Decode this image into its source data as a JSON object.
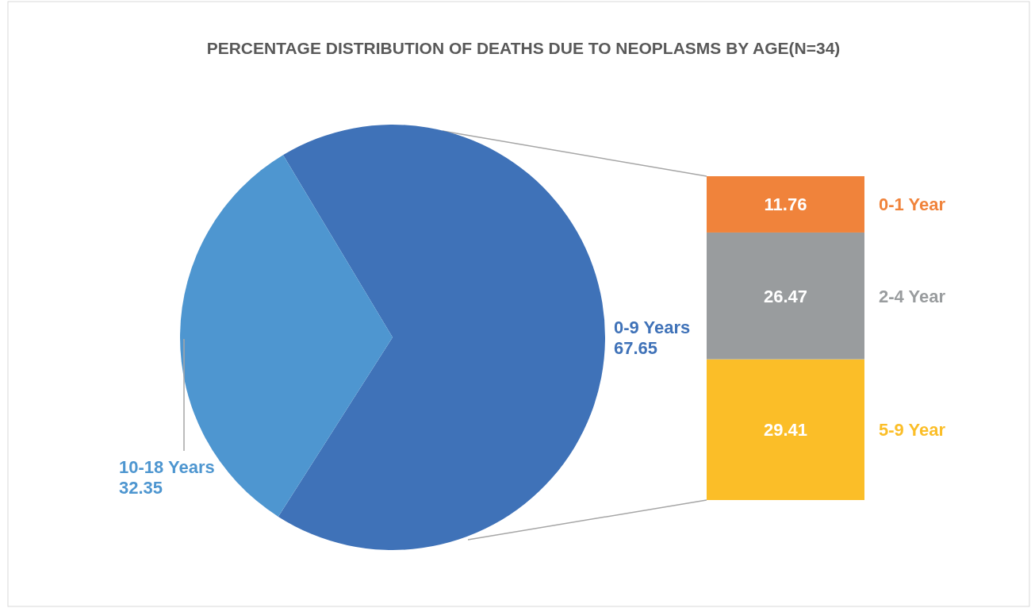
{
  "chart_data": [
    {
      "type": "pie",
      "title": "PERCENTAGE DISTRIBUTION OF DEATHS DUE TO NEOPLASMS BY AGE(N=34)",
      "categories": [
        "0-9 Years",
        "10-18 Years"
      ],
      "values": [
        67.65,
        32.35
      ],
      "colors": [
        "#3f72b8",
        "#4e96d0"
      ],
      "data_labels": true,
      "legend": false
    },
    {
      "type": "bar",
      "stacked": true,
      "categories": [
        null
      ],
      "data_labels": true,
      "legend": false,
      "series": [
        {
          "name": "5-9 Year",
          "color": "#fbbe28",
          "values": [
            29.41
          ]
        },
        {
          "name": "2-4 Year",
          "color": "#999c9e",
          "values": [
            26.47
          ]
        },
        {
          "name": "0-1 Year",
          "color": "#f0833b",
          "values": [
            11.76
          ]
        }
      ]
    }
  ]
}
